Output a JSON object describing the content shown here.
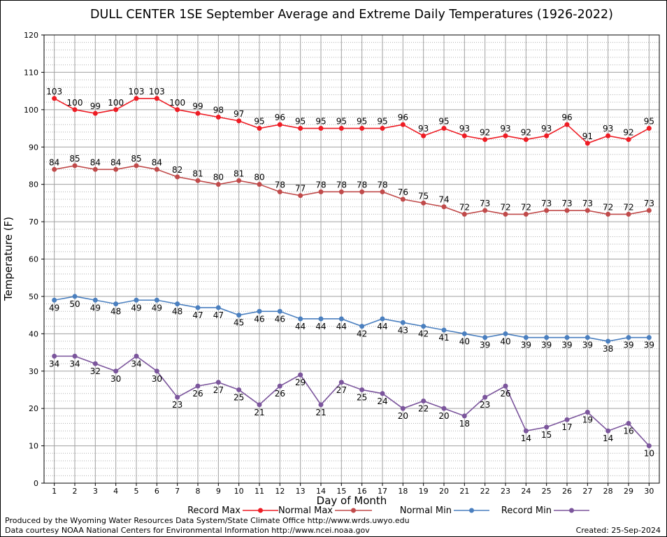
{
  "chart_data": {
    "type": "line",
    "title": "DULL CENTER 1SE September Average and Extreme Daily Temperatures (1926-2022)",
    "xlabel": "Day of Month",
    "ylabel": "Temperature (F)",
    "ylim": [
      0,
      120
    ],
    "yticks": [
      0,
      10,
      20,
      30,
      40,
      50,
      60,
      70,
      80,
      90,
      100,
      110,
      120
    ],
    "x": [
      1,
      2,
      3,
      4,
      5,
      6,
      7,
      8,
      9,
      10,
      11,
      12,
      13,
      14,
      15,
      16,
      17,
      18,
      19,
      20,
      21,
      22,
      23,
      24,
      25,
      26,
      27,
      28,
      29,
      30
    ],
    "grid": true,
    "legend_position": "bottom",
    "series": [
      {
        "name": "Record Max",
        "color": "#ee1c24",
        "label_pos": "above",
        "values": [
          103,
          100,
          99,
          100,
          103,
          103,
          100,
          99,
          98,
          97,
          95,
          96,
          95,
          95,
          95,
          95,
          95,
          96,
          93,
          95,
          93,
          92,
          93,
          92,
          93,
          96,
          91,
          93,
          92,
          95
        ]
      },
      {
        "name": "Normal Max",
        "color": "#c04a4a",
        "label_pos": "above",
        "values": [
          84,
          85,
          84,
          84,
          85,
          84,
          82,
          81,
          80,
          81,
          80,
          78,
          77,
          78,
          78,
          78,
          78,
          76,
          75,
          74,
          72,
          73,
          72,
          72,
          73,
          73,
          73,
          72,
          72,
          73
        ]
      },
      {
        "name": "Normal Min",
        "color": "#4a7fbf",
        "label_pos": "below",
        "values": [
          49,
          50,
          49,
          48,
          49,
          49,
          48,
          47,
          47,
          45,
          46,
          46,
          44,
          44,
          44,
          42,
          44,
          43,
          42,
          41,
          40,
          39,
          40,
          39,
          39,
          39,
          39,
          38,
          39,
          39
        ]
      },
      {
        "name": "Record Min",
        "color": "#7b559c",
        "label_pos": "below",
        "values": [
          34,
          34,
          32,
          30,
          34,
          30,
          23,
          26,
          27,
          25,
          21,
          26,
          29,
          21,
          27,
          25,
          24,
          20,
          22,
          20,
          18,
          23,
          26,
          14,
          15,
          17,
          19,
          14,
          16,
          10
        ]
      }
    ]
  },
  "footer": {
    "credit_line1": "Produced by the Wyoming Water Resources Data System/State Climate Office http://www.wrds.uwyo.edu",
    "credit_line2": "Data courtesy NOAA National Centers for Environmental Information http://www.ncei.noaa.gov",
    "created": "Created:  25-Sep-2024"
  }
}
